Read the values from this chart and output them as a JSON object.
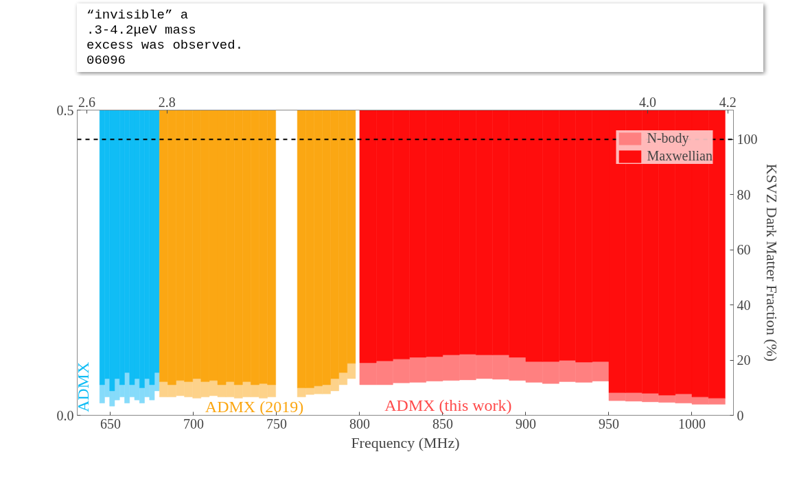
{
  "chart_data": {
    "type": "bar",
    "xlabel": "Frequency (MHz)",
    "y2label": "KSVZ Dark Matter Fraction (%)",
    "xlim": [
      630,
      1025
    ],
    "xticks": [
      650,
      700,
      750,
      800,
      850,
      900,
      950,
      1000
    ],
    "ylim": [
      0,
      0.5
    ],
    "yticks": [
      {
        "value": 0,
        "label": "0.0"
      },
      {
        "value": 0.5,
        "label": "0.5"
      }
    ],
    "y2lim": [
      0,
      110.6
    ],
    "y2ticks": [
      0,
      20,
      40,
      60,
      80,
      100
    ],
    "x2lim": [
      2.576,
      4.214
    ],
    "x2ticks": [
      2.6,
      2.8,
      {
        "value": 4,
        "label": "4.0"
      },
      4.2
    ],
    "ref_lines": [
      {
        "axis": "y2",
        "value": 100,
        "color": "#000000",
        "line_style": "dashed"
      }
    ],
    "legend": "top right",
    "series": [
      {
        "color": "#86dbfa",
        "x": [
          645,
          648,
          651,
          654,
          657,
          660,
          663,
          666,
          669,
          672,
          675,
          678
        ],
        "base": [
          0.02,
          0.03,
          0.015,
          0.025,
          0.03,
          0.02,
          0.03,
          0.025,
          0.02,
          0.03,
          0.025,
          0.04
        ],
        "values": [
          0.03,
          0.03,
          0.025,
          0.035,
          0.02,
          0.05,
          0.02,
          0.035,
          0.025,
          0.03,
          0.025,
          0.03
        ]
      },
      {
        "name": "ADMX",
        "color": "#10bdf5",
        "x": [
          645,
          648,
          651,
          654,
          657,
          660,
          663,
          666,
          669,
          672,
          675,
          678
        ],
        "base": [
          0.05,
          0.06,
          0.04,
          0.06,
          0.05,
          0.07,
          0.05,
          0.06,
          0.045,
          0.06,
          0.05,
          0.07
        ],
        "values": [
          0.45,
          0.44,
          0.46,
          0.44,
          0.45,
          0.43,
          0.45,
          0.44,
          0.455,
          0.44,
          0.45,
          0.43
        ]
      },
      {
        "color": "#fdd28a",
        "x": [
          682,
          687,
          692,
          697,
          702,
          707,
          712,
          717,
          722,
          727,
          732,
          737,
          742,
          747
        ],
        "base": [
          0.03,
          0.03,
          0.032,
          0.03,
          0.028,
          0.03,
          0.032,
          0.03,
          0.03,
          0.028,
          0.03,
          0.03,
          0.028,
          0.03
        ],
        "values": [
          0.025,
          0.02,
          0.025,
          0.025,
          0.032,
          0.025,
          0.025,
          0.02,
          0.025,
          0.022,
          0.025,
          0.02,
          0.024,
          0.02
        ]
      },
      {
        "name": "ADMX (2019)",
        "color": "#fba713",
        "x": [
          682,
          687,
          692,
          697,
          702,
          707,
          712,
          717,
          722,
          727,
          732,
          737,
          742,
          747
        ],
        "base": [
          0.055,
          0.05,
          0.057,
          0.055,
          0.06,
          0.055,
          0.057,
          0.05,
          0.055,
          0.05,
          0.055,
          0.05,
          0.052,
          0.05
        ],
        "values": [
          0.445,
          0.45,
          0.443,
          0.445,
          0.44,
          0.445,
          0.443,
          0.45,
          0.445,
          0.45,
          0.445,
          0.45,
          0.448,
          0.45
        ]
      },
      {
        "color": "#fdd28a",
        "x": [
          765,
          770,
          775,
          780,
          785,
          790,
          795
        ],
        "base": [
          0.03,
          0.034,
          0.035,
          0.035,
          0.04,
          0.05,
          0.06
        ],
        "values": [
          0.015,
          0.011,
          0.013,
          0.015,
          0.02,
          0.02,
          0.025
        ]
      },
      {
        "color": "#fba713",
        "x": [
          765,
          770,
          775,
          780,
          785,
          790,
          795
        ],
        "base": [
          0.045,
          0.045,
          0.048,
          0.05,
          0.06,
          0.07,
          0.085
        ],
        "values": [
          0.455,
          0.455,
          0.452,
          0.45,
          0.44,
          0.43,
          0.415
        ]
      },
      {
        "name": "N-body",
        "color": "#ff8080",
        "x": [
          805,
          815,
          825,
          835,
          845,
          855,
          865,
          875,
          885,
          895,
          905,
          915,
          925,
          935,
          945,
          955,
          965,
          975,
          985,
          995,
          1005,
          1015
        ],
        "base": [
          0.05,
          0.05,
          0.053,
          0.054,
          0.056,
          0.057,
          0.058,
          0.06,
          0.059,
          0.057,
          0.054,
          0.052,
          0.055,
          0.054,
          0.056,
          0.024,
          0.023,
          0.022,
          0.021,
          0.02,
          0.018,
          0.018
        ],
        "values": [
          0.036,
          0.039,
          0.039,
          0.041,
          0.04,
          0.042,
          0.042,
          0.039,
          0.04,
          0.038,
          0.034,
          0.036,
          0.035,
          0.033,
          0.032,
          0.013,
          0.014,
          0.014,
          0.012,
          0.015,
          0.012,
          0.01
        ]
      },
      {
        "name": "Maxwellian",
        "color": "#ff0d0d",
        "x": [
          805,
          815,
          825,
          835,
          845,
          855,
          865,
          875,
          885,
          895,
          905,
          915,
          925,
          935,
          945,
          955,
          965,
          975,
          985,
          995,
          1005,
          1015
        ],
        "base": [
          0.086,
          0.089,
          0.092,
          0.095,
          0.096,
          0.099,
          0.1,
          0.099,
          0.099,
          0.095,
          0.088,
          0.088,
          0.09,
          0.087,
          0.088,
          0.037,
          0.037,
          0.036,
          0.033,
          0.035,
          0.03,
          0.028
        ],
        "values": [
          0.414,
          0.411,
          0.408,
          0.405,
          0.404,
          0.401,
          0.4,
          0.401,
          0.401,
          0.405,
          0.412,
          0.412,
          0.41,
          0.413,
          0.412,
          0.463,
          0.463,
          0.464,
          0.467,
          0.465,
          0.47,
          0.472
        ]
      }
    ],
    "annotations": [
      "ADMX (this work)",
      "“invisible” a",
      ".3-4.2μeV mass",
      "excess was observed.",
      "06096"
    ]
  }
}
